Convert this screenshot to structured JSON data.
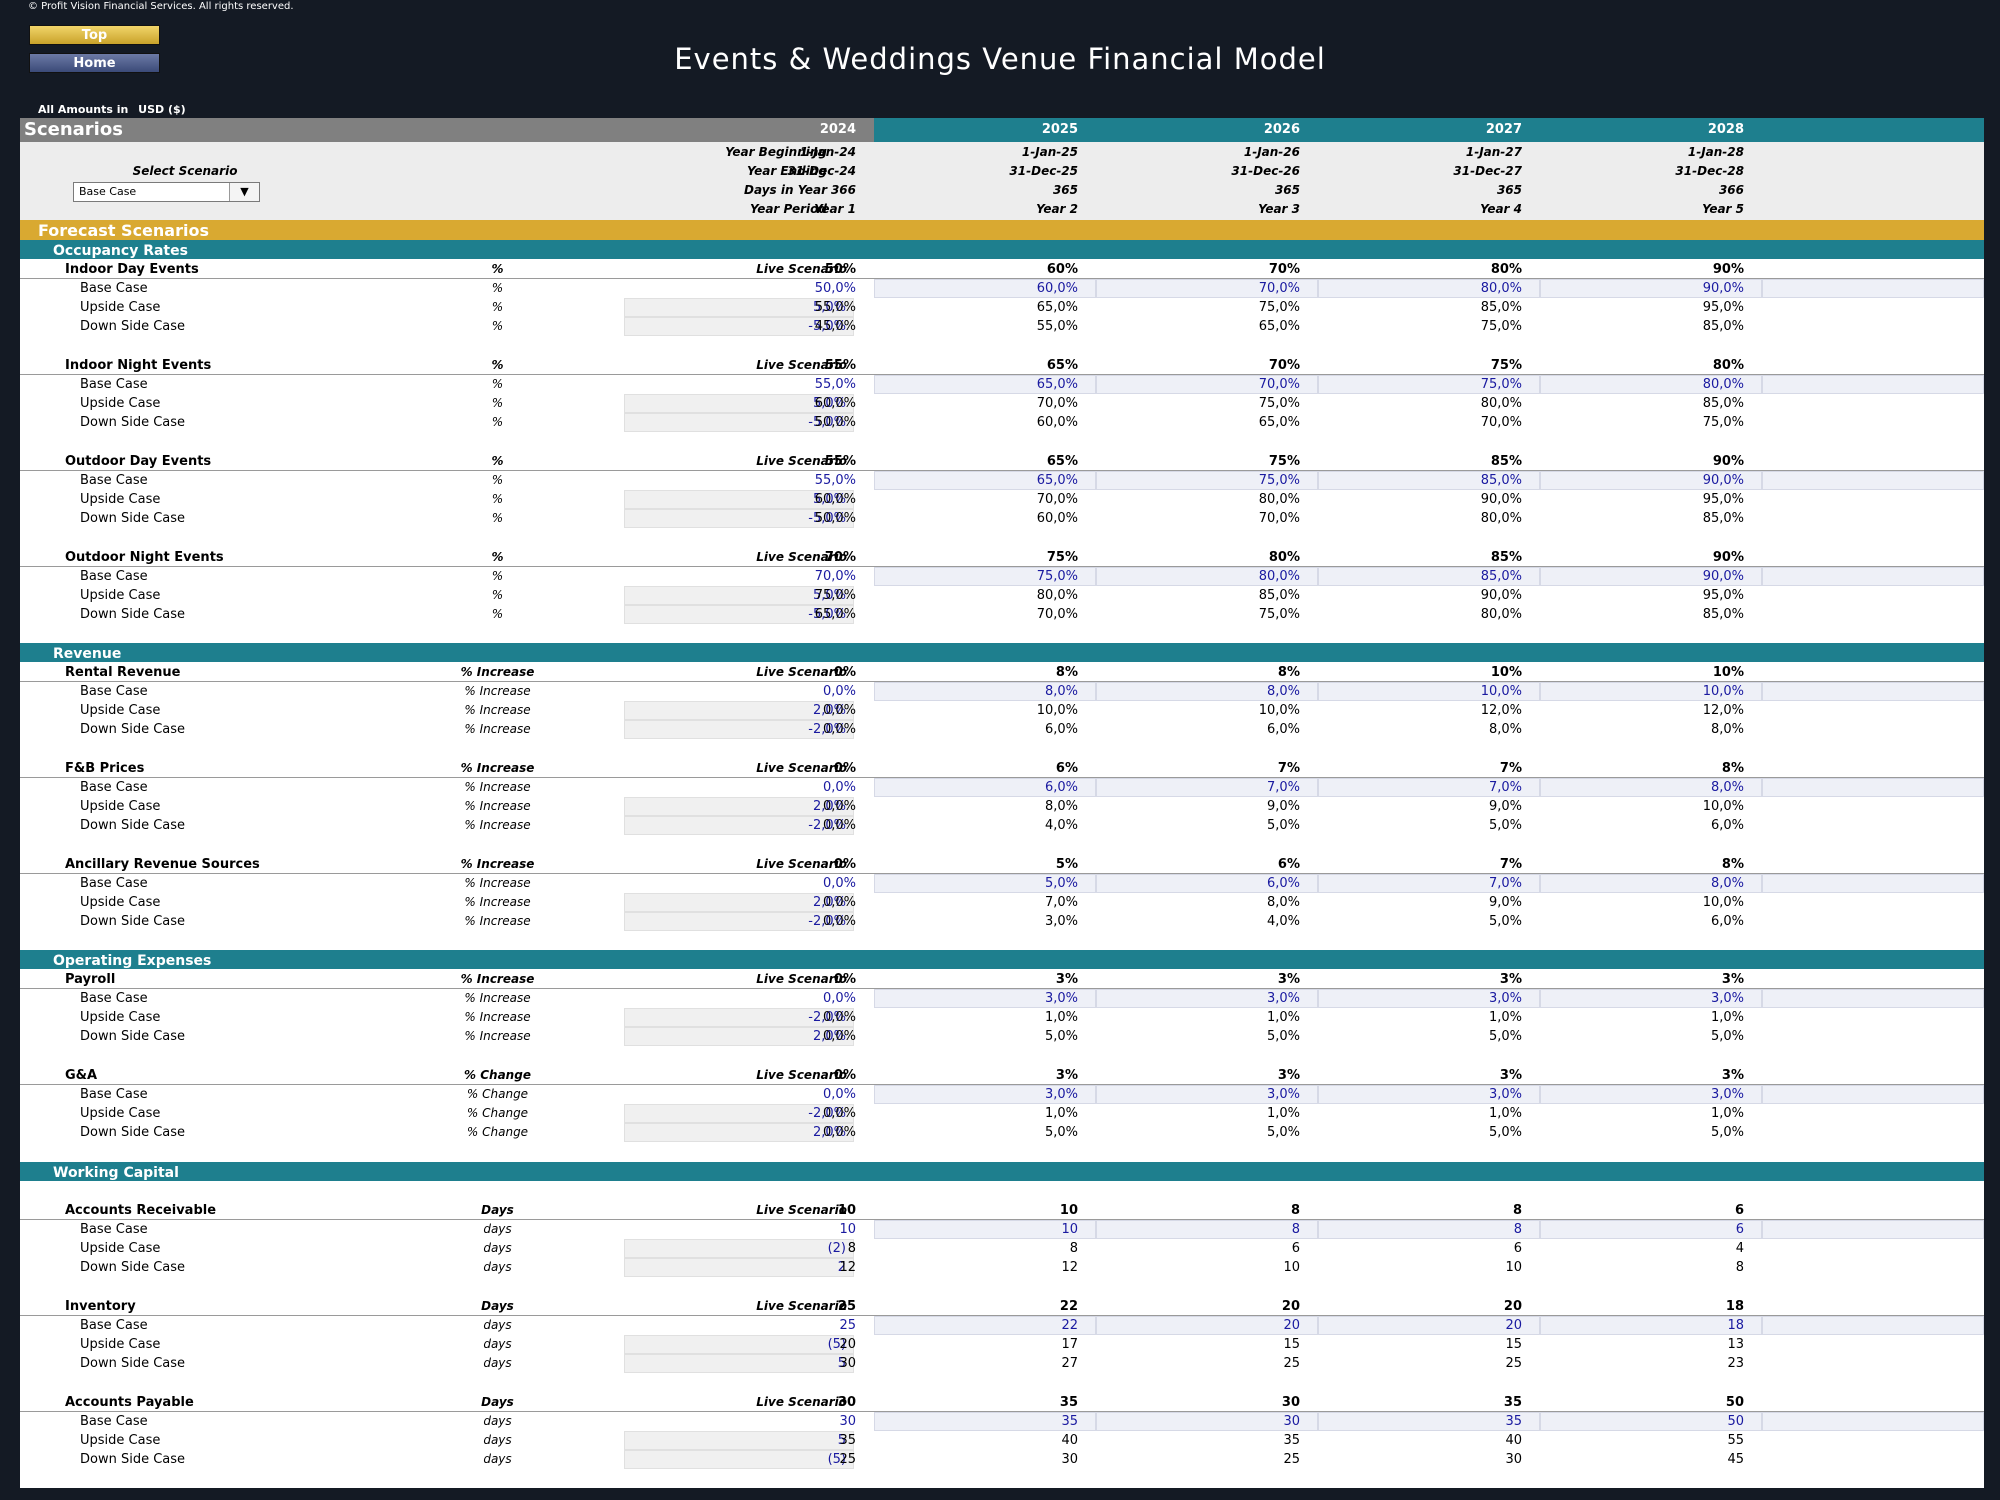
{
  "copyright": "© Profit Vision Financial Services. All rights reserved.",
  "nav": {
    "top": "Top",
    "home": "Home"
  },
  "title": "Events & Weddings Venue Financial Model",
  "amounts": {
    "label": "All Amounts in",
    "currency": "USD ($)"
  },
  "scenarios_header": "Scenarios",
  "years": [
    "2024",
    "2025",
    "2026",
    "2027",
    "2028"
  ],
  "select_scenario_label": "Select Scenario",
  "select_scenario_value": "Base Case",
  "timeline": {
    "year_beginning_label": "Year Beginning",
    "year_ending_label": "Year Ending",
    "days_label": "Days in Year",
    "period_label": "Year Period",
    "year_beginning": [
      "1-Jan-24",
      "1-Jan-25",
      "1-Jan-26",
      "1-Jan-27",
      "1-Jan-28"
    ],
    "year_ending": [
      "31-Dec-24",
      "31-Dec-25",
      "31-Dec-26",
      "31-Dec-27",
      "31-Dec-28"
    ],
    "days": [
      "366",
      "365",
      "365",
      "365",
      "366"
    ],
    "period": [
      "Year 1",
      "Year 2",
      "Year 3",
      "Year 4",
      "Year 5"
    ]
  },
  "forecast_title": "Forecast Scenarios",
  "live_label": "Live Scenario",
  "case_labels": {
    "base": "Base Case",
    "up": "Upside Case",
    "down": "Down Side Case"
  },
  "sections": [
    {
      "title": "Occupancy Rates",
      "groups": [
        {
          "name": "Indoor Day Events",
          "unit_main": "%",
          "unit_sub": "%",
          "live": [
            "50%",
            "60%",
            "70%",
            "80%",
            "90%"
          ],
          "base": [
            "50,0%",
            "60,0%",
            "70,0%",
            "80,0%",
            "90,0%"
          ],
          "up_adj": "5,0%",
          "up": [
            "55,0%",
            "65,0%",
            "75,0%",
            "85,0%",
            "95,0%"
          ],
          "down_adj": "-5,0%",
          "down": [
            "45,0%",
            "55,0%",
            "65,0%",
            "75,0%",
            "85,0%"
          ]
        },
        {
          "name": "Indoor Night Events",
          "unit_main": "%",
          "unit_sub": "%",
          "live": [
            "55%",
            "65%",
            "70%",
            "75%",
            "80%"
          ],
          "base": [
            "55,0%",
            "65,0%",
            "70,0%",
            "75,0%",
            "80,0%"
          ],
          "up_adj": "5,0%",
          "up": [
            "60,0%",
            "70,0%",
            "75,0%",
            "80,0%",
            "85,0%"
          ],
          "down_adj": "-5,0%",
          "down": [
            "50,0%",
            "60,0%",
            "65,0%",
            "70,0%",
            "75,0%"
          ]
        },
        {
          "name": "Outdoor Day Events",
          "unit_main": "%",
          "unit_sub": "%",
          "live": [
            "55%",
            "65%",
            "75%",
            "85%",
            "90%"
          ],
          "base": [
            "55,0%",
            "65,0%",
            "75,0%",
            "85,0%",
            "90,0%"
          ],
          "up_adj": "5,0%",
          "up": [
            "60,0%",
            "70,0%",
            "80,0%",
            "90,0%",
            "95,0%"
          ],
          "down_adj": "-5,0%",
          "down": [
            "50,0%",
            "60,0%",
            "70,0%",
            "80,0%",
            "85,0%"
          ]
        },
        {
          "name": "Outdoor Night Events",
          "unit_main": "%",
          "unit_sub": "%",
          "live": [
            "70%",
            "75%",
            "80%",
            "85%",
            "90%"
          ],
          "base": [
            "70,0%",
            "75,0%",
            "80,0%",
            "85,0%",
            "90,0%"
          ],
          "up_adj": "5,0%",
          "up": [
            "75,0%",
            "80,0%",
            "85,0%",
            "90,0%",
            "95,0%"
          ],
          "down_adj": "-5,0%",
          "down": [
            "65,0%",
            "70,0%",
            "75,0%",
            "80,0%",
            "85,0%"
          ]
        }
      ]
    },
    {
      "title": "Revenue",
      "groups": [
        {
          "name": "Rental Revenue",
          "unit_main": "% Increase",
          "unit_sub": "% Increase",
          "live": [
            "0%",
            "8%",
            "8%",
            "10%",
            "10%"
          ],
          "base": [
            "0,0%",
            "8,0%",
            "8,0%",
            "10,0%",
            "10,0%"
          ],
          "up_adj": "2,0%",
          "up": [
            "0,0%",
            "10,0%",
            "10,0%",
            "12,0%",
            "12,0%"
          ],
          "down_adj": "-2,0%",
          "down": [
            "0,0%",
            "6,0%",
            "6,0%",
            "8,0%",
            "8,0%"
          ]
        },
        {
          "name": "F&B Prices",
          "unit_main": "% Increase",
          "unit_sub": "% Increase",
          "live": [
            "0%",
            "6%",
            "7%",
            "7%",
            "8%"
          ],
          "base": [
            "0,0%",
            "6,0%",
            "7,0%",
            "7,0%",
            "8,0%"
          ],
          "up_adj": "2,0%",
          "up": [
            "0,0%",
            "8,0%",
            "9,0%",
            "9,0%",
            "10,0%"
          ],
          "down_adj": "-2,0%",
          "down": [
            "0,0%",
            "4,0%",
            "5,0%",
            "5,0%",
            "6,0%"
          ]
        },
        {
          "name": "Ancillary Revenue Sources",
          "unit_main": "% Increase",
          "unit_sub": "% Increase",
          "live": [
            "0%",
            "5%",
            "6%",
            "7%",
            "8%"
          ],
          "base": [
            "0,0%",
            "5,0%",
            "6,0%",
            "7,0%",
            "8,0%"
          ],
          "up_adj": "2,0%",
          "up": [
            "0,0%",
            "7,0%",
            "8,0%",
            "9,0%",
            "10,0%"
          ],
          "down_adj": "-2,0%",
          "down": [
            "0,0%",
            "3,0%",
            "4,0%",
            "5,0%",
            "6,0%"
          ]
        }
      ]
    },
    {
      "title": "Operating Expenses",
      "groups": [
        {
          "name": "Payroll",
          "unit_main": "% Increase",
          "unit_sub": "% Increase",
          "live": [
            "0%",
            "3%",
            "3%",
            "3%",
            "3%"
          ],
          "base": [
            "0,0%",
            "3,0%",
            "3,0%",
            "3,0%",
            "3,0%"
          ],
          "up_adj": "-2,0%",
          "up": [
            "0,0%",
            "1,0%",
            "1,0%",
            "1,0%",
            "1,0%"
          ],
          "down_adj": "2,0%",
          "down": [
            "0,0%",
            "5,0%",
            "5,0%",
            "5,0%",
            "5,0%"
          ]
        },
        {
          "name": "G&A",
          "unit_main": "% Change",
          "unit_sub": "% Change",
          "live": [
            "0%",
            "3%",
            "3%",
            "3%",
            "3%"
          ],
          "base": [
            "0,0%",
            "3,0%",
            "3,0%",
            "3,0%",
            "3,0%"
          ],
          "up_adj": "-2,0%",
          "up": [
            "0,0%",
            "1,0%",
            "1,0%",
            "1,0%",
            "1,0%"
          ],
          "down_adj": "2,0%",
          "down": [
            "0,0%",
            "5,0%",
            "5,0%",
            "5,0%",
            "5,0%"
          ]
        }
      ]
    },
    {
      "title": "Working Capital",
      "groups": [
        {
          "name": "Accounts Receivable",
          "unit_main": "Days",
          "unit_sub": "days",
          "live": [
            "10",
            "10",
            "8",
            "8",
            "6"
          ],
          "base": [
            "10",
            "10",
            "8",
            "8",
            "6"
          ],
          "up_adj": "(2)",
          "up": [
            "8",
            "8",
            "6",
            "6",
            "4"
          ],
          "down_adj": "2",
          "down": [
            "12",
            "12",
            "10",
            "10",
            "8"
          ]
        },
        {
          "name": "Inventory",
          "unit_main": "Days",
          "unit_sub": "days",
          "live": [
            "25",
            "22",
            "20",
            "20",
            "18"
          ],
          "base": [
            "25",
            "22",
            "20",
            "20",
            "18"
          ],
          "up_adj": "(5)",
          "up": [
            "20",
            "17",
            "15",
            "15",
            "13"
          ],
          "down_adj": "5",
          "down": [
            "30",
            "27",
            "25",
            "25",
            "23"
          ]
        },
        {
          "name": "Accounts Payable",
          "unit_main": "Days",
          "unit_sub": "days",
          "live": [
            "30",
            "35",
            "30",
            "35",
            "50"
          ],
          "base": [
            "30",
            "35",
            "30",
            "35",
            "50"
          ],
          "up_adj": "5",
          "up": [
            "35",
            "40",
            "35",
            "40",
            "55"
          ],
          "down_adj": "(5)",
          "down": [
            "25",
            "30",
            "25",
            "30",
            "45"
          ]
        }
      ]
    }
  ]
}
